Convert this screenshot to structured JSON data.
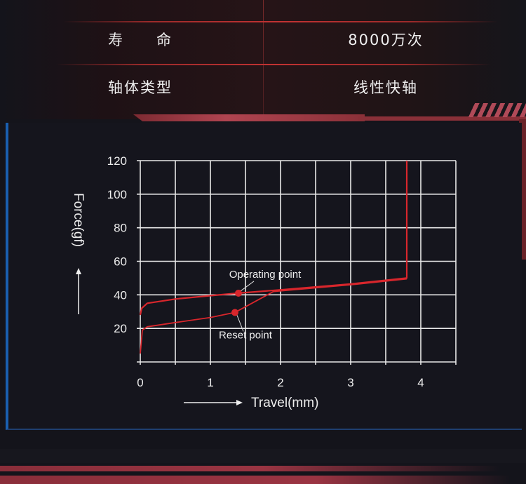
{
  "specs": [
    {
      "label": "寿　　命",
      "value": "8000万次"
    },
    {
      "label": "轴体类型",
      "value": "线性快轴"
    }
  ],
  "colors": {
    "curve": "#d8262c",
    "grid": "#e8e8e8",
    "background": "#14141b",
    "accent_blue": "#1a5fb0"
  },
  "chart_data": {
    "type": "line",
    "title": "",
    "xlabel": "Travel(mm)",
    "ylabel": "Force(gf)",
    "xlim": [
      0,
      4.5
    ],
    "ylim": [
      0,
      120
    ],
    "xticks": [
      "0",
      "1",
      "2",
      "3",
      "4"
    ],
    "yticks": [
      "20",
      "40",
      "60",
      "80",
      "100",
      "120"
    ],
    "grid": true,
    "series": [
      {
        "x": [
          0,
          0.02,
          0.1,
          0.5,
          1.0,
          1.4,
          2.0,
          3.0,
          3.8,
          3.8
        ],
        "y": [
          28,
          32,
          35,
          37.5,
          39.5,
          41,
          43,
          46.5,
          50,
          120
        ]
      },
      {
        "x": [
          0,
          0.03,
          0.1,
          0.5,
          1.0,
          1.35,
          1.9,
          3.0,
          3.8
        ],
        "y": [
          5,
          19,
          21,
          23.5,
          26.5,
          29.5,
          42,
          46,
          49.5
        ]
      }
    ],
    "annotations": [
      {
        "text": "Operating point",
        "x": 1.4,
        "y": 41
      },
      {
        "text": "Reset point",
        "x": 1.35,
        "y": 29.5
      }
    ]
  }
}
